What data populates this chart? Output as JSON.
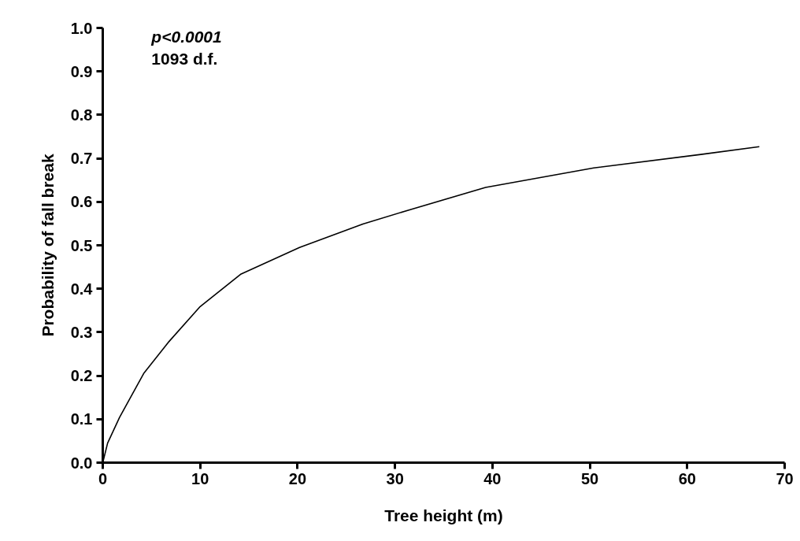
{
  "chart_data": {
    "type": "line",
    "xlabel": "Tree height (m)",
    "ylabel": "Probability of fall break",
    "annotations": [
      "p<0.0001",
      "1093 d.f."
    ],
    "x": [
      0,
      0.5,
      1.72,
      4.2,
      6.7,
      10,
      14.2,
      20.2,
      26.7,
      31.7,
      39.3,
      50.4,
      61.4,
      67.4
    ],
    "series": [
      {
        "color": "#000000",
        "values": [
          0,
          0.045,
          0.104,
          0.205,
          0.276,
          0.359,
          0.434,
          0.495,
          0.549,
          0.583,
          0.633,
          0.678,
          0.709,
          0.727
        ]
      }
    ],
    "xlim": [
      0,
      70
    ],
    "xticks": [
      0,
      10,
      20,
      30,
      40,
      50,
      60,
      70
    ],
    "ylim": [
      0,
      1.0
    ],
    "yticks": [
      {
        "value": 0,
        "label": "0.0"
      },
      0.1,
      0.2,
      0.3,
      0.4,
      0.5,
      0.6,
      0.7,
      0.8,
      0.9,
      {
        "value": 1,
        "label": "1.0"
      }
    ],
    "grid": false,
    "marker": "none",
    "line_style": "solid"
  }
}
